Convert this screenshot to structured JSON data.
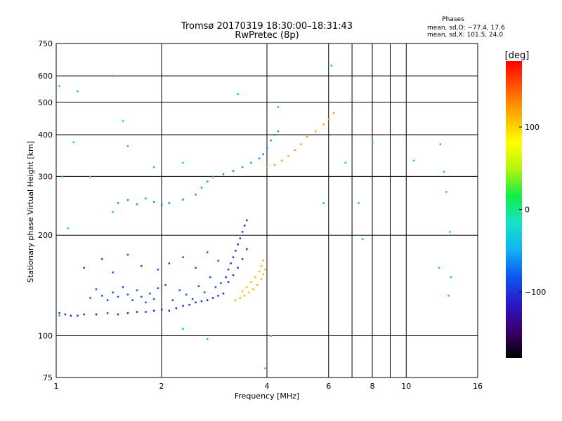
{
  "chart_data": {
    "type": "scatter",
    "title": "Tromsø 20170319 18:30:00–18:31:43",
    "subtitle": "RwPretec (8p)",
    "xlabel": "Frequency [MHz]",
    "ylabel": "Stationary phase Virtual Height [km]",
    "x_scale": "log",
    "y_scale": "log",
    "xlim": [
      1,
      16
    ],
    "ylim": [
      75,
      750
    ],
    "x_ticks": [
      1,
      2,
      4,
      6,
      8,
      10,
      16
    ],
    "x_ticks_labeled": [
      "1",
      "2",
      "4",
      "6",
      "8",
      "10",
      "16"
    ],
    "x_gridlines": [
      1,
      2,
      4,
      6,
      7,
      8,
      9,
      10
    ],
    "y_ticks": [
      75,
      100,
      200,
      300,
      400,
      500,
      600,
      750
    ],
    "y_ticks_labeled": [
      "75",
      "100",
      "200",
      "300",
      "400",
      "500",
      "600",
      "750"
    ],
    "y_gridlines": [
      100,
      200,
      300,
      400,
      500,
      600
    ],
    "grid": true,
    "info": {
      "heading": "Phases",
      "line1": "mean, sd,O: −77.4, 17.6",
      "line2": "mean, sd,X: 101.5, 24.0"
    },
    "colorbar": {
      "label": "[deg]",
      "range": [
        -180,
        180
      ],
      "ticks": [
        "100",
        "0",
        "−100"
      ],
      "tick_values": [
        100,
        0,
        -100
      ],
      "colors": [
        "#000000",
        "#3a006e",
        "#2a17c6",
        "#0b57f0",
        "#12b2f4",
        "#16e3c8",
        "#10ee46",
        "#b5f40e",
        "#ffff00",
        "#ffb000",
        "#ff5a00",
        "#ff0000"
      ]
    },
    "series": [
      {
        "trace": "low_F_trace",
        "phase_deg": -105,
        "points": [
          [
            1.02,
            117
          ],
          [
            1.06,
            116
          ],
          [
            1.1,
            115
          ],
          [
            1.15,
            115
          ],
          [
            1.2,
            116
          ],
          [
            1.3,
            116
          ],
          [
            1.4,
            117
          ],
          [
            1.5,
            116
          ],
          [
            1.6,
            117
          ],
          [
            1.7,
            118
          ],
          [
            1.8,
            118
          ],
          [
            1.9,
            119
          ],
          [
            2.0,
            120
          ],
          [
            2.1,
            119
          ],
          [
            2.2,
            121
          ],
          [
            2.3,
            123
          ],
          [
            2.4,
            124
          ],
          [
            2.5,
            126
          ],
          [
            2.6,
            127
          ],
          [
            2.7,
            128
          ],
          [
            2.8,
            130
          ],
          [
            2.9,
            132
          ],
          [
            3.0,
            134
          ]
        ]
      },
      {
        "trace": "scatter_band",
        "phase_deg": -85,
        "points": [
          [
            1.25,
            130
          ],
          [
            1.3,
            138
          ],
          [
            1.35,
            132
          ],
          [
            1.4,
            128
          ],
          [
            1.45,
            135
          ],
          [
            1.5,
            131
          ],
          [
            1.55,
            140
          ],
          [
            1.6,
            133
          ],
          [
            1.65,
            128
          ],
          [
            1.7,
            137
          ],
          [
            1.75,
            131
          ],
          [
            1.8,
            126
          ],
          [
            1.85,
            134
          ],
          [
            1.9,
            129
          ],
          [
            1.95,
            139
          ],
          [
            2.05,
            142
          ],
          [
            2.15,
            128
          ],
          [
            2.25,
            137
          ],
          [
            2.35,
            133
          ],
          [
            2.45,
            129
          ],
          [
            2.55,
            141
          ],
          [
            2.65,
            135
          ],
          [
            2.75,
            150
          ],
          [
            2.85,
            140
          ],
          [
            2.95,
            144
          ],
          [
            1.2,
            160
          ],
          [
            1.35,
            170
          ],
          [
            1.45,
            155
          ],
          [
            1.6,
            175
          ],
          [
            1.75,
            162
          ],
          [
            1.95,
            158
          ],
          [
            2.1,
            165
          ],
          [
            2.3,
            172
          ],
          [
            2.5,
            160
          ],
          [
            2.7,
            178
          ],
          [
            2.9,
            168
          ]
        ]
      },
      {
        "trace": "F2_lower_branch",
        "phase_deg": -100,
        "points": [
          [
            3.05,
            150
          ],
          [
            3.1,
            158
          ],
          [
            3.15,
            165
          ],
          [
            3.2,
            172
          ],
          [
            3.25,
            180
          ],
          [
            3.3,
            188
          ],
          [
            3.35,
            196
          ],
          [
            3.4,
            205
          ],
          [
            3.45,
            214
          ],
          [
            3.5,
            222
          ],
          [
            3.1,
            145
          ],
          [
            3.2,
            152
          ],
          [
            3.3,
            160
          ],
          [
            3.4,
            170
          ],
          [
            3.5,
            182
          ]
        ]
      },
      {
        "trace": "F2_x_trace_low",
        "phase_deg": 110,
        "points": [
          [
            3.25,
            128
          ],
          [
            3.35,
            130
          ],
          [
            3.45,
            132
          ],
          [
            3.55,
            135
          ],
          [
            3.65,
            138
          ],
          [
            3.75,
            142
          ],
          [
            3.85,
            148
          ],
          [
            3.9,
            153
          ],
          [
            3.95,
            158
          ],
          [
            3.6,
            145
          ],
          [
            3.7,
            150
          ],
          [
            3.8,
            156
          ],
          [
            3.85,
            162
          ],
          [
            3.9,
            168
          ],
          [
            3.5,
            140
          ],
          [
            3.4,
            136
          ]
        ]
      },
      {
        "trace": "upper_F_trace",
        "phase_deg": -60,
        "points": [
          [
            1.5,
            250
          ],
          [
            1.6,
            255
          ],
          [
            1.7,
            248
          ],
          [
            1.8,
            258
          ],
          [
            1.9,
            252
          ],
          [
            2.0,
            247
          ],
          [
            2.1,
            250
          ],
          [
            2.3,
            256
          ],
          [
            2.5,
            265
          ],
          [
            2.6,
            278
          ],
          [
            2.7,
            290
          ],
          [
            2.8,
            300
          ],
          [
            3.0,
            305
          ],
          [
            3.2,
            312
          ],
          [
            3.4,
            320
          ],
          [
            3.6,
            330
          ],
          [
            3.8,
            340
          ],
          [
            3.9,
            350
          ],
          [
            4.0,
            365
          ],
          [
            4.1,
            385
          ],
          [
            4.2,
            400
          ],
          [
            4.3,
            410
          ]
        ]
      },
      {
        "trace": "upper_x_trace",
        "phase_deg": 120,
        "points": [
          [
            4.0,
            320
          ],
          [
            4.2,
            325
          ],
          [
            4.4,
            335
          ],
          [
            4.6,
            345
          ],
          [
            4.8,
            360
          ],
          [
            5.0,
            375
          ],
          [
            5.2,
            395
          ],
          [
            5.5,
            410
          ],
          [
            5.8,
            430
          ],
          [
            6.0,
            445
          ],
          [
            6.2,
            465
          ]
        ]
      },
      {
        "trace": "isolated",
        "phase_deg": -40,
        "points": [
          [
            1.02,
            560
          ],
          [
            1.15,
            540
          ],
          [
            1.45,
            600
          ],
          [
            1.55,
            440
          ],
          [
            1.9,
            320
          ],
          [
            2.3,
            330
          ],
          [
            1.04,
            300
          ],
          [
            1.08,
            210
          ],
          [
            1.12,
            380
          ],
          [
            1.6,
            370
          ],
          [
            3.3,
            530
          ],
          [
            4.3,
            485
          ],
          [
            6.1,
            645
          ],
          [
            7.0,
            510
          ],
          [
            7.3,
            250
          ],
          [
            7.5,
            195
          ],
          [
            8.0,
            380
          ],
          [
            10.5,
            335
          ],
          [
            12.5,
            375
          ],
          [
            12.8,
            310
          ],
          [
            13.0,
            270
          ],
          [
            13.3,
            205
          ],
          [
            12.4,
            160
          ],
          [
            13.4,
            150
          ],
          [
            13.2,
            132
          ],
          [
            4.1,
            100
          ],
          [
            3.95,
            80
          ],
          [
            2.3,
            105
          ],
          [
            2.7,
            98
          ],
          [
            5.8,
            250
          ],
          [
            6.7,
            330
          ],
          [
            1.45,
            235
          ],
          [
            1.25,
            300
          ],
          [
            1.02,
            115
          ]
        ]
      }
    ]
  }
}
